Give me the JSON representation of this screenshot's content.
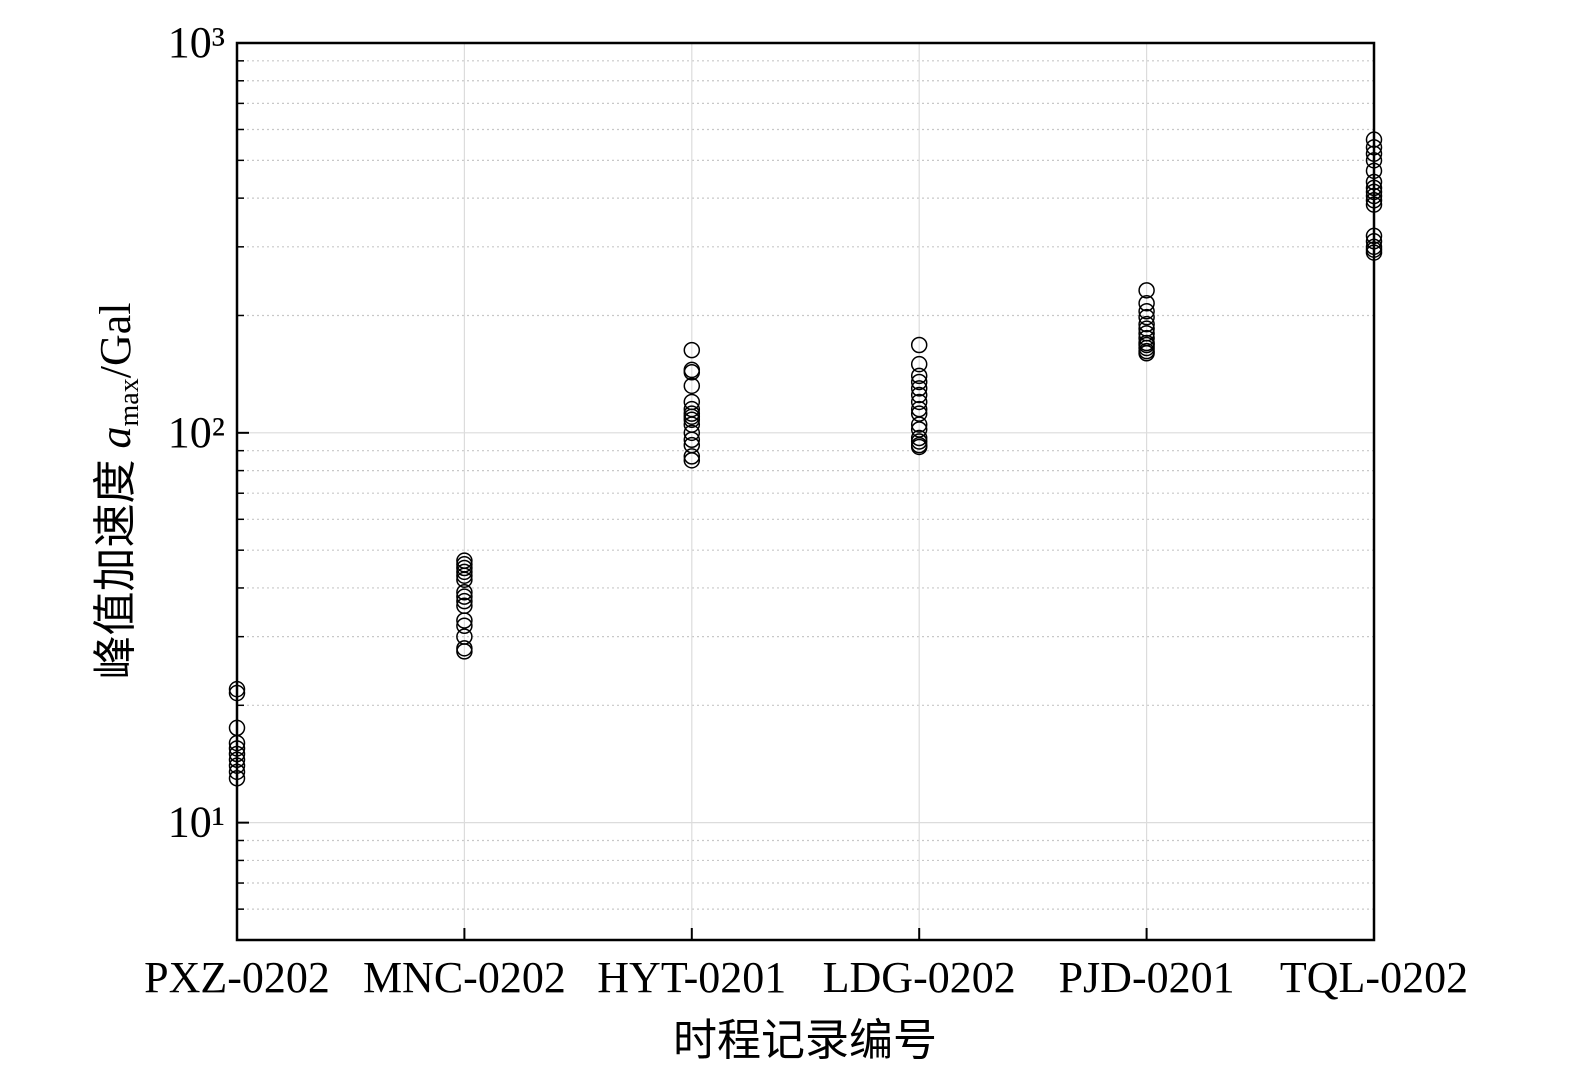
{
  "chart_data": {
    "type": "scatter",
    "xlabel": "时程记录编号",
    "ylabel": {
      "text": "峰值加速度 ",
      "var": "a",
      "sub": "max",
      "unit": "/Gal"
    },
    "categories": [
      "PXZ-0202",
      "MNC-0202",
      "HYT-0201",
      "LDG-0202",
      "PJD-0201",
      "TQL-0202"
    ],
    "values": [
      [
        22,
        21.5,
        17.5,
        16,
        15.5,
        15,
        14.5,
        14,
        13.5,
        13
      ],
      [
        47,
        46,
        45,
        44,
        43,
        42,
        39,
        38,
        37,
        36,
        33,
        32,
        30,
        28,
        27.5
      ],
      [
        163,
        145,
        143,
        132,
        120,
        115,
        112,
        110,
        108,
        105,
        100,
        96,
        93,
        87,
        85
      ],
      [
        168,
        150,
        140,
        135,
        130,
        125,
        120,
        115,
        112,
        105,
        102,
        97,
        95,
        93,
        92
      ],
      [
        232,
        215,
        205,
        198,
        190,
        185,
        180,
        175,
        170,
        168,
        165,
        162,
        160
      ],
      [
        565,
        540,
        520,
        500,
        470,
        440,
        425,
        415,
        405,
        395,
        385,
        320,
        310,
        300,
        295,
        290
      ]
    ],
    "color": "#000000",
    "ylim": [
      5,
      1000
    ],
    "log_y": true,
    "yticks": [
      {
        "value": 10,
        "label": "10¹"
      },
      {
        "value": 100,
        "label": "10²"
      },
      {
        "value": 1000,
        "label": "10³"
      }
    ],
    "minor_yticks": [
      6,
      7,
      8,
      9,
      20,
      30,
      40,
      50,
      60,
      70,
      80,
      90,
      200,
      300,
      400,
      500,
      600,
      700,
      800,
      900
    ],
    "grid": true
  }
}
